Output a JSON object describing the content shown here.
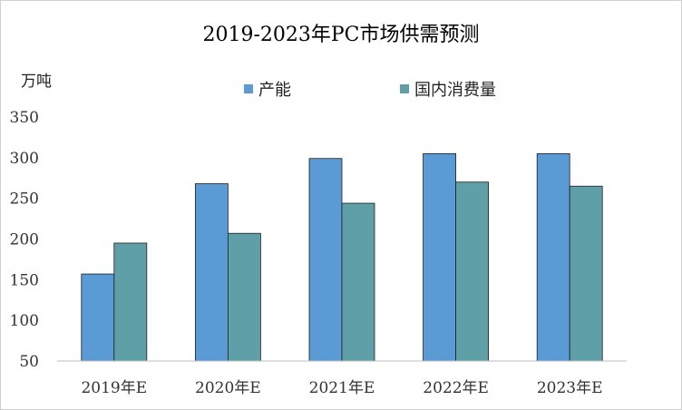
{
  "chart_data": {
    "type": "bar",
    "title": "2019-2023年PC市场供需预测",
    "ylabel": "万吨",
    "xlabel": "",
    "categories": [
      "2019年E",
      "2020年E",
      "2021年E",
      "2022年E",
      "2023年E"
    ],
    "series": [
      {
        "name": "产能",
        "values": [
          157,
          268,
          299,
          305,
          305
        ],
        "color": "#5b9bd5"
      },
      {
        "name": "国内消费量",
        "values": [
          195,
          207,
          244,
          270,
          265
        ],
        "color": "#5fa0a8"
      }
    ],
    "ylim": [
      50,
      350
    ],
    "yticks": [
      50,
      100,
      150,
      200,
      250,
      300,
      350
    ],
    "grid": false,
    "legend": "top-center"
  }
}
